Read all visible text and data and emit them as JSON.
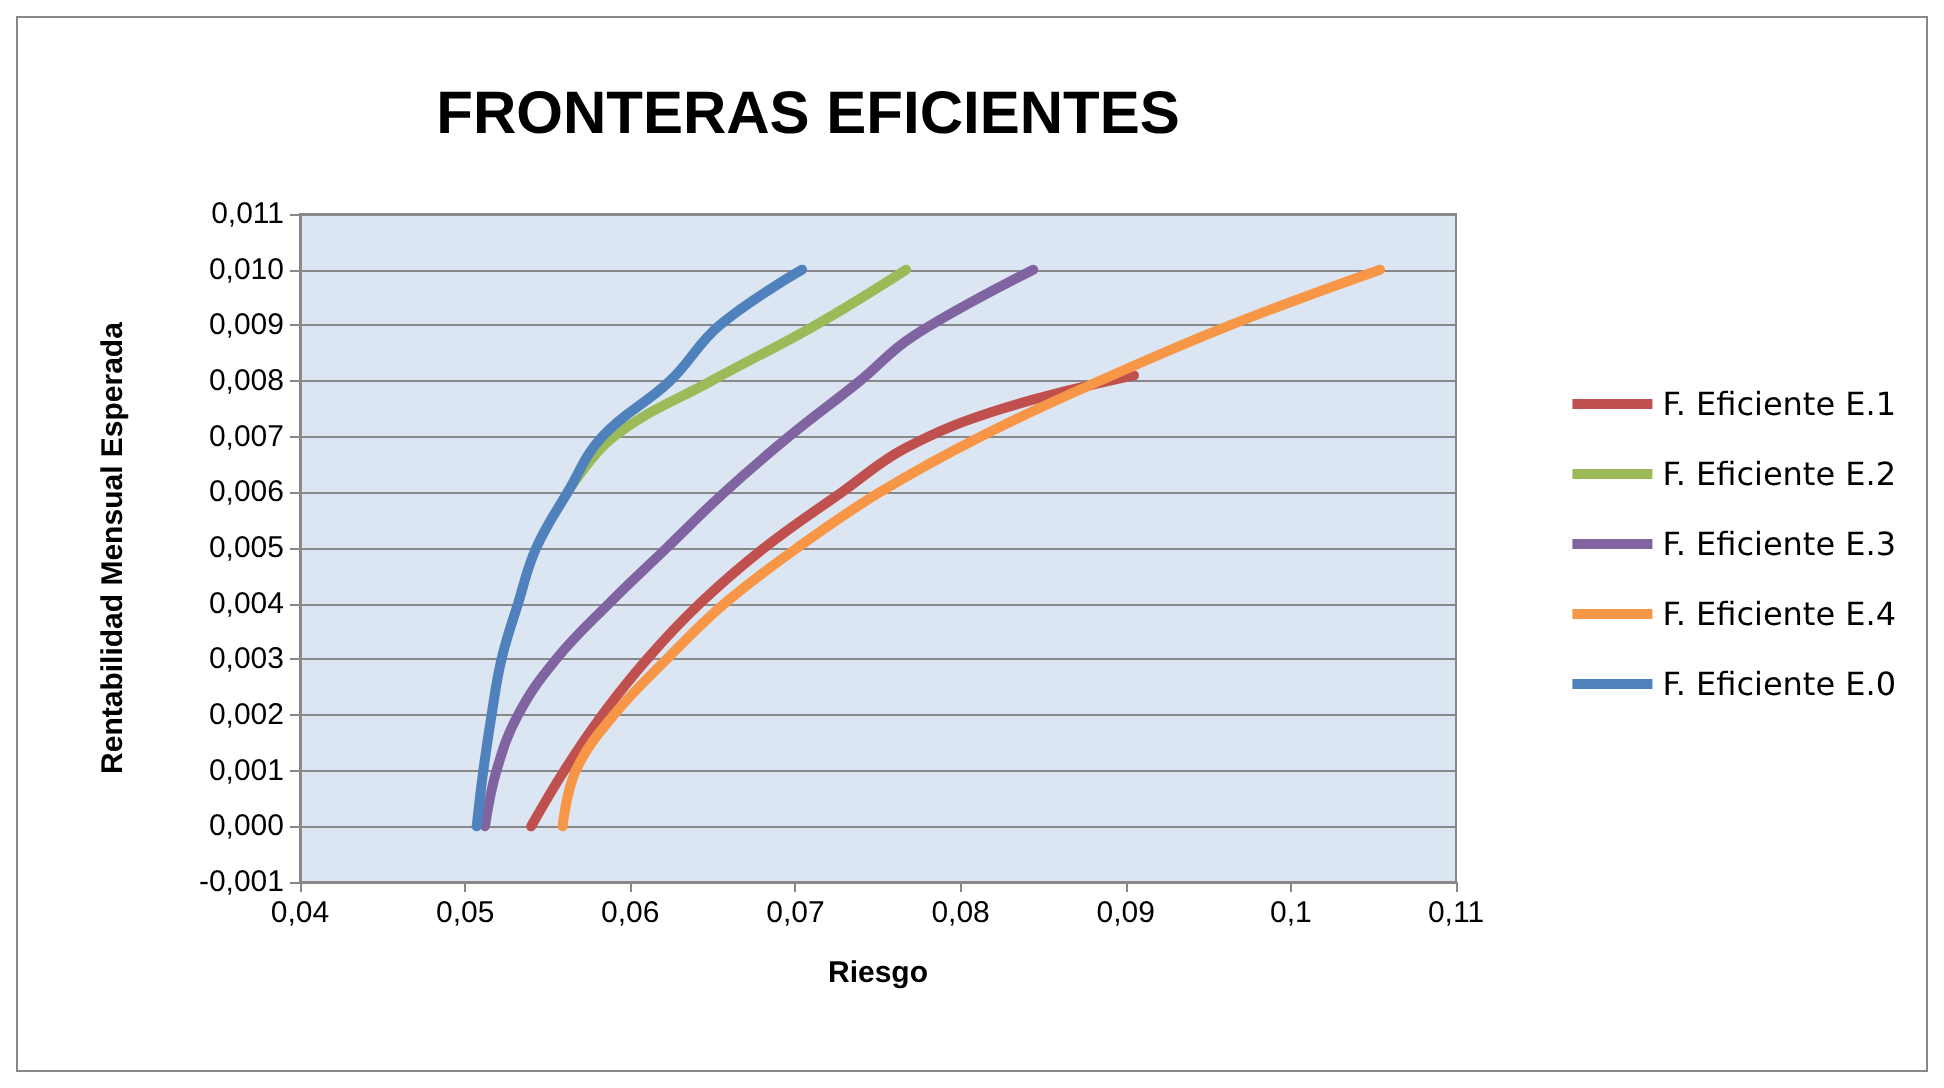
{
  "chart_data": {
    "type": "line",
    "title": "FRONTERAS EFICIENTES",
    "xlabel": "Riesgo",
    "ylabel": "Rentabilidad Mensual Esperada",
    "xlim": [
      0.04,
      0.11
    ],
    "ylim": [
      -0.001,
      0.011
    ],
    "xticks": [
      {
        "value": 0.04,
        "label": "0,04"
      },
      {
        "value": 0.05,
        "label": "0,05"
      },
      {
        "value": 0.06,
        "label": "0,06"
      },
      {
        "value": 0.07,
        "label": "0,07"
      },
      {
        "value": 0.08,
        "label": "0,08"
      },
      {
        "value": 0.09,
        "label": "0,09"
      },
      {
        "value": 0.1,
        "label": "0,1"
      },
      {
        "value": 0.11,
        "label": "0,11"
      }
    ],
    "yticks": [
      {
        "value": -0.001,
        "label": "-0,001"
      },
      {
        "value": 0,
        "label": "0,000"
      },
      {
        "value": 0.001,
        "label": "0,001"
      },
      {
        "value": 0.002,
        "label": "0,002"
      },
      {
        "value": 0.003,
        "label": "0,003"
      },
      {
        "value": 0.004,
        "label": "0,004"
      },
      {
        "value": 0.005,
        "label": "0,005"
      },
      {
        "value": 0.006,
        "label": "0,006"
      },
      {
        "value": 0.007,
        "label": "0,007"
      },
      {
        "value": 0.008,
        "label": "0,008"
      },
      {
        "value": 0.009,
        "label": "0,009"
      },
      {
        "value": 0.01,
        "label": "0,010"
      },
      {
        "value": 0.011,
        "label": "0,011"
      }
    ],
    "grid": "y",
    "legend": "right",
    "marker": "none",
    "line_style": "solid",
    "series": [
      {
        "name": "F. Eficiente E.1",
        "color": "#c0504d",
        "x": [
          0.054,
          0.056,
          0.0583,
          0.061,
          0.0642,
          0.0681,
          0.0728,
          0.0767,
          0.0825,
          0.0905
        ],
        "values": [
          0,
          0.001,
          0.002,
          0.003,
          0.004,
          0.005,
          0.006,
          0.0068,
          0.0075,
          0.0081
        ]
      },
      {
        "name": "F. Eficiente E.2",
        "color": "#9bbb59",
        "x": [
          0.0562,
          0.059,
          0.0649,
          0.0712,
          0.0767
        ],
        "values": [
          0.006,
          0.007,
          0.008,
          0.009,
          0.01
        ]
      },
      {
        "name": "F. Eficiente E.3",
        "color": "#8064a2",
        "x": [
          0.0512,
          0.0519,
          0.0532,
          0.0555,
          0.0587,
          0.0622,
          0.0657,
          0.0696,
          0.0739,
          0.0771,
          0.0844
        ],
        "values": [
          0,
          0.001,
          0.002,
          0.003,
          0.004,
          0.005,
          0.006,
          0.007,
          0.008,
          0.0088,
          0.01
        ]
      },
      {
        "name": "F. Eficiente E.4",
        "color": "#f79646",
        "x": [
          0.0559,
          0.0567,
          0.059,
          0.0622,
          0.0657,
          0.0701,
          0.0751,
          0.0812,
          0.0884,
          0.0963,
          0.1054
        ],
        "values": [
          0,
          0.001,
          0.002,
          0.003,
          0.004,
          0.005,
          0.006,
          0.007,
          0.008,
          0.009,
          0.01
        ]
      },
      {
        "name": "F. Eficiente E.0",
        "color": "#4f81bd",
        "x": [
          0.0507,
          0.0511,
          0.0516,
          0.0522,
          0.0532,
          0.0543,
          0.0562,
          0.0583,
          0.0624,
          0.0654,
          0.0704
        ],
        "values": [
          0,
          0.001,
          0.002,
          0.003,
          0.004,
          0.005,
          0.006,
          0.007,
          0.008,
          0.009,
          0.01
        ]
      }
    ]
  }
}
